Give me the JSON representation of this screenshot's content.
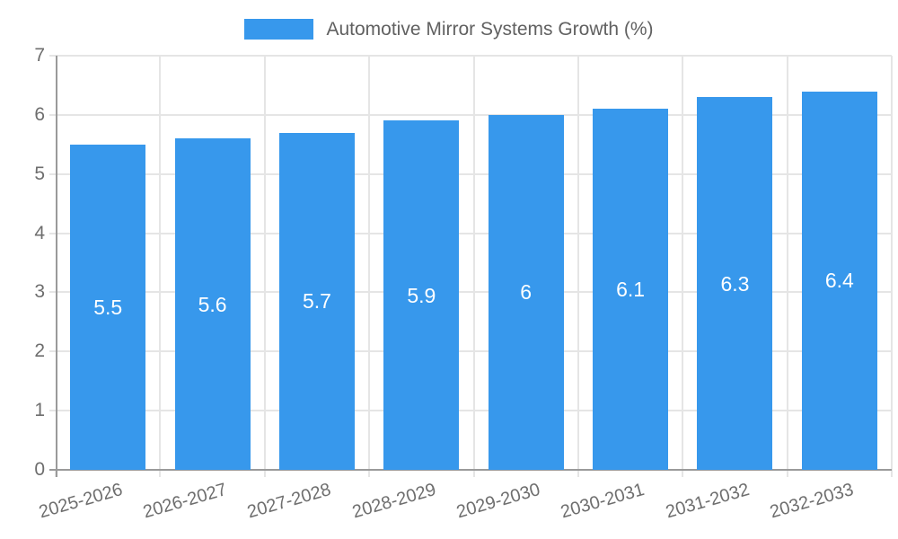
{
  "legend": {
    "label": "Automotive Mirror Systems Growth (%)"
  },
  "colors": {
    "bar": "#3798EC",
    "grid": "#E5E5E5",
    "axis": "#9A9A9A",
    "tick_label": "#6E6E6E",
    "legend_label": "#616161",
    "value_label": "#FFFFFF",
    "background": "#FFFFFF"
  },
  "chart_data": {
    "type": "bar",
    "title": "Automotive Mirror Systems Growth (%)",
    "categories": [
      "2025-2026",
      "2026-2027",
      "2027-2028",
      "2028-2029",
      "2029-2030",
      "2030-2031",
      "2031-2032",
      "2032-2033"
    ],
    "values": [
      5.5,
      5.6,
      5.7,
      5.9,
      6,
      6.1,
      6.3,
      6.4
    ],
    "value_labels": [
      "5.5",
      "5.6",
      "5.7",
      "5.9",
      "6",
      "6.1",
      "6.3",
      "6.4"
    ],
    "xlabel": "",
    "ylabel": "",
    "ylim": [
      0,
      7
    ],
    "yticks": [
      0,
      1,
      2,
      3,
      4,
      5,
      6,
      7
    ],
    "grid": true,
    "legend_position": "top",
    "x_label_rotation_deg": -16
  }
}
